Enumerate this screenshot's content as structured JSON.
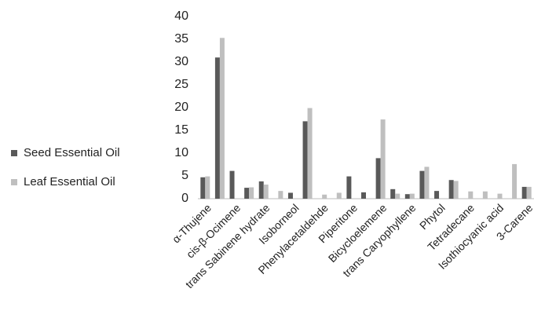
{
  "chart_data": {
    "type": "bar",
    "categories": [
      "α-Thujene",
      null,
      "cis-β-Ocimene",
      null,
      "trans Sabinene hydrate",
      null,
      "Isoborneol",
      null,
      "Phenylacetaldehde",
      null,
      "Piperitone",
      null,
      "Bicycloelemene",
      null,
      "trans Caryophyllene",
      null,
      "Phytol",
      null,
      "Tetradecane",
      null,
      "Isothiocyanic acid",
      null,
      "3-Carene"
    ],
    "series": [
      {
        "name": "Seed Essential Oil",
        "color": "#595959",
        "values": [
          4.7,
          31,
          6.1,
          2.4,
          3.8,
          0,
          1.3,
          17,
          0,
          0,
          4.9,
          1.4,
          8.9,
          2.1,
          1,
          6.1,
          1.7,
          4.1,
          0,
          0,
          0,
          0,
          2.6
        ]
      },
      {
        "name": "Leaf Essential Oil",
        "color": "#bfbfbf",
        "values": [
          4.9,
          35.3,
          0,
          2.5,
          3.1,
          1.7,
          0,
          19.9,
          0.9,
          1.3,
          0,
          0,
          17.4,
          1.1,
          1.1,
          7,
          0,
          3.9,
          1.6,
          1.6,
          1.1,
          7.6,
          2.6
        ]
      }
    ],
    "ylim": [
      0,
      40
    ],
    "yticks": [
      0,
      5,
      10,
      15,
      20,
      25,
      30,
      35,
      40
    ],
    "grid": false,
    "legend": "left"
  }
}
